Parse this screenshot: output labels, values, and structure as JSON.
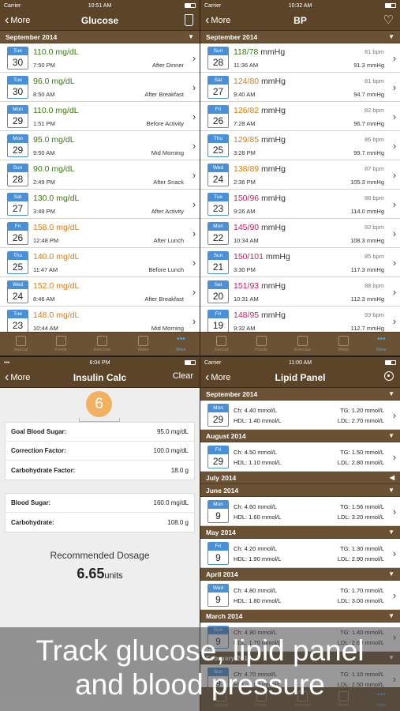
{
  "glucose": {
    "status": {
      "carrier": "Carrier",
      "time": "10:51 AM"
    },
    "nav": {
      "back": "More",
      "title": "Glucose"
    },
    "section": "September 2014",
    "rows": [
      {
        "dow": "Tue",
        "day": "30",
        "value": "110.0 mg/dL",
        "time": "7:50 PM",
        "tag": "After Dinner",
        "color": "#3b7a12"
      },
      {
        "dow": "Tue",
        "day": "30",
        "value": "96.0 mg/dL",
        "time": "8:50 AM",
        "tag": "After Breakfast",
        "color": "#3b7a12"
      },
      {
        "dow": "Mon",
        "day": "29",
        "value": "110.0 mg/dL",
        "time": "1:51 PM",
        "tag": "Before Activity",
        "color": "#3b7a12"
      },
      {
        "dow": "Mon",
        "day": "29",
        "value": "95.0 mg/dL",
        "time": "9:50 AM",
        "tag": "Mid Morning",
        "color": "#3b7a12"
      },
      {
        "dow": "Sun",
        "day": "28",
        "value": "90.0 mg/dL",
        "time": "2:49 PM",
        "tag": "After Snack",
        "color": "#3b7a12"
      },
      {
        "dow": "Sat",
        "day": "27",
        "value": "130.0 mg/dL",
        "time": "3:49 PM",
        "tag": "After Activity",
        "color": "#3b7a12"
      },
      {
        "dow": "Fri",
        "day": "26",
        "value": "158.0 mg/dL",
        "time": "12:48 PM",
        "tag": "After Lunch",
        "color": "#e07b0f"
      },
      {
        "dow": "Thu",
        "day": "25",
        "value": "140.0 mg/dL",
        "time": "11:47 AM",
        "tag": "Before Lunch",
        "color": "#e07b0f"
      },
      {
        "dow": "Wed",
        "day": "24",
        "value": "152.0 mg/dL",
        "time": "8:46 AM",
        "tag": "After Breakfast",
        "color": "#e07b0f"
      },
      {
        "dow": "Tue",
        "day": "23",
        "value": "148.0 mg/dL",
        "time": "10:44 AM",
        "tag": "Mid Morning",
        "color": "#e07b0f"
      }
    ],
    "tabs": [
      {
        "label": "Journal"
      },
      {
        "label": "Foods"
      },
      {
        "label": "Exercise"
      },
      {
        "label": "Water"
      },
      {
        "label": "More",
        "active": true
      }
    ]
  },
  "bp": {
    "status": {
      "carrier": "Carrier",
      "time": "10:32 AM"
    },
    "nav": {
      "back": "More",
      "title": "BP"
    },
    "section": "September 2014",
    "unit": "mmHg",
    "rows": [
      {
        "dow": "Sun",
        "day": "28",
        "sys": "118",
        "dia": "78",
        "time": "11:36 AM",
        "bpm": "81 bpm",
        "map": "91.3 mmHg",
        "sc": "#3b7a12",
        "dc": "#3b7a12"
      },
      {
        "dow": "Sat",
        "day": "27",
        "sys": "124",
        "dia": "80",
        "time": "9:40 AM",
        "bpm": "81 bpm",
        "map": "94.7 mmHg",
        "sc": "#e07b0f",
        "dc": "#e07b0f"
      },
      {
        "dow": "Fri",
        "day": "26",
        "sys": "126",
        "dia": "82",
        "time": "7:28 AM",
        "bpm": "82 bpm",
        "map": "96.7 mmHg",
        "sc": "#e07b0f",
        "dc": "#e07b0f"
      },
      {
        "dow": "Thu",
        "day": "25",
        "sys": "129",
        "dia": "85",
        "time": "3:28 PM",
        "bpm": "86 bpm",
        "map": "99.7 mmHg",
        "sc": "#e07b0f",
        "dc": "#e07b0f"
      },
      {
        "dow": "Wed",
        "day": "24",
        "sys": "138",
        "dia": "89",
        "time": "2:36 PM",
        "bpm": "87 bpm",
        "map": "105.3 mmHg",
        "sc": "#e07b0f",
        "dc": "#e07b0f"
      },
      {
        "dow": "Tue",
        "day": "23",
        "sys": "150",
        "dia": "96",
        "time": "9:26 AM",
        "bpm": "88 bpm",
        "map": "114.0 mmHg",
        "sc": "#d11a5e",
        "dc": "#d11a5e"
      },
      {
        "dow": "Mon",
        "day": "22",
        "sys": "145",
        "dia": "90",
        "time": "10:34 AM",
        "bpm": "92 bpm",
        "map": "108.3 mmHg",
        "sc": "#d11a5e",
        "dc": "#d11a5e"
      },
      {
        "dow": "Sun",
        "day": "21",
        "sys": "150",
        "dia": "101",
        "time": "3:30 PM",
        "bpm": "85 bpm",
        "map": "117.3 mmHg",
        "sc": "#d11a5e",
        "dc": "#d11a5e"
      },
      {
        "dow": "Sat",
        "day": "20",
        "sys": "151",
        "dia": "93",
        "time": "10:31 AM",
        "bpm": "88 bpm",
        "map": "112.3 mmHg",
        "sc": "#d11a5e",
        "dc": "#d11a5e"
      },
      {
        "dow": "Fri",
        "day": "19",
        "sys": "148",
        "dia": "95",
        "time": "9:32 AM",
        "bpm": "93 bpm",
        "map": "112.7 mmHg",
        "sc": "#d11a5e",
        "dc": "#d11a5e"
      }
    ],
    "tabs": [
      {
        "label": "Journal"
      },
      {
        "label": "Foods"
      },
      {
        "label": "Exercise"
      },
      {
        "label": "Water"
      },
      {
        "label": "More",
        "active": true
      }
    ]
  },
  "insulin": {
    "status": {
      "time": "6:04 PM"
    },
    "nav": {
      "back": "More",
      "title": "Insulin Calc",
      "right": "Clear"
    },
    "badge": "6",
    "group1": [
      {
        "label": "Goal Blood Sugar:",
        "value": "95.0 mg/dL"
      },
      {
        "label": "Correction Factor:",
        "value": "100.0 mg/dL"
      },
      {
        "label": "Carbohydrate Factor:",
        "value": "18.0 g"
      }
    ],
    "group2": [
      {
        "label": "Blood Sugar:",
        "value": "160.0 mg/dL"
      },
      {
        "label": "Carbohydrate:",
        "value": "108.0 g"
      }
    ],
    "recommended_label": "Recommended Dosage",
    "dose": "6.65",
    "dose_unit": "units"
  },
  "lipid": {
    "status": {
      "carrier": "Carrier",
      "time": "11:00 AM"
    },
    "nav": {
      "back": "More",
      "title": "Lipid Panel"
    },
    "blocks": [
      {
        "section": "September 2014",
        "tri": "▼",
        "rows": [
          {
            "dow": "Mon",
            "day": "29",
            "ch": "Ch: 4.40 mmol/L",
            "tg": "TG: 1.20 mmol/L",
            "hdl": "HDL: 1.40 mmol/L",
            "ldl": "LDL: 2.70 mmol/L"
          }
        ]
      },
      {
        "section": "August 2014",
        "tri": "▼",
        "rows": [
          {
            "dow": "Fri",
            "day": "29",
            "ch": "Ch: 4.50 mmol/L",
            "tg": "TG: 1.50 mmol/L",
            "hdl": "HDL: 1.10 mmol/L",
            "ldl": "LDL: 2.80 mmol/L"
          }
        ]
      },
      {
        "section": "July 2014",
        "tri": "◀",
        "rows": []
      },
      {
        "section": "June 2014",
        "tri": "▼",
        "rows": [
          {
            "dow": "Mon",
            "day": "9",
            "ch": "Ch: 4.60 mmol/L",
            "tg": "TG: 1.56 mmol/L",
            "hdl": "HDL: 1.60 mmol/L",
            "ldl": "LDL: 3.20 mmol/L"
          }
        ]
      },
      {
        "section": "May 2014",
        "tri": "▼",
        "rows": [
          {
            "dow": "Fri",
            "day": "9",
            "ch": "Ch: 4.20 mmol/L",
            "tg": "TG: 1.30 mmol/L",
            "hdl": "HDL: 1.90 mmol/L",
            "ldl": "LDL: 2.90 mmol/L"
          }
        ]
      },
      {
        "section": "April 2014",
        "tri": "▼",
        "rows": [
          {
            "dow": "Wed",
            "day": "9",
            "ch": "Ch: 4.80 mmol/L",
            "tg": "TG: 1.70 mmol/L",
            "hdl": "HDL: 1.80 mmol/L",
            "ldl": "LDL: 3.00 mmol/L"
          }
        ]
      },
      {
        "section": "March 2014",
        "tri": "▼",
        "rows": [
          {
            "dow": "Sun",
            "day": "9",
            "ch": "Ch: 4.90 mmol/L",
            "tg": "TG: 1.40 mmol/L",
            "hdl": "HDL: 1.70 mmol/L",
            "ldl": "LDL: 2.60 mmol/L"
          }
        ]
      },
      {
        "section": "February 2014",
        "tri": "▼",
        "rows": [
          {
            "dow": "Sun",
            "day": "9",
            "ch": "Ch: 4.70 mmol/L",
            "tg": "TG: 1.10 mmol/L",
            "hdl": "HDL: 1.50 mmol/L",
            "ldl": "LDL: 2.50 mmol/L"
          }
        ]
      }
    ],
    "tabs": [
      {
        "label": "Journal"
      },
      {
        "label": "Foods"
      },
      {
        "label": "Exercise"
      },
      {
        "label": "Water"
      },
      {
        "label": "More",
        "active": true
      }
    ]
  },
  "caption": {
    "line1": "Track glucose, lipid panel",
    "line2": "and blood pressure"
  }
}
